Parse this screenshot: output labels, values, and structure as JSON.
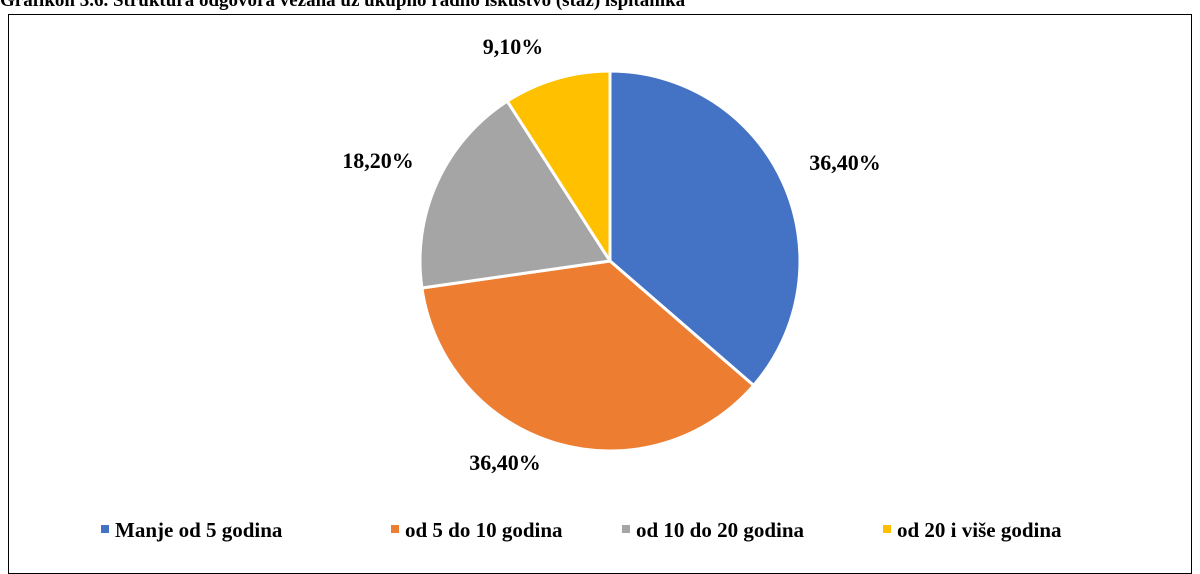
{
  "caption": "Grafikon 3.6. Struktura odgovora vezana uz ukupno radno iskustvo (staž) ispitanika",
  "chart_data": {
    "type": "pie",
    "title": "",
    "start_angle_deg": 0,
    "direction": "clockwise",
    "legend_position": "bottom",
    "slices": [
      {
        "category": "Manje od 5 godina",
        "value": 36.4,
        "label": "36,40%",
        "color": "#4472C4"
      },
      {
        "category": "od 5 do 10 godina",
        "value": 36.4,
        "label": "36,40%",
        "color": "#ED7D31"
      },
      {
        "category": "od 10 do 20 godina",
        "value": 18.2,
        "label": "18,20%",
        "color": "#A5A5A5"
      },
      {
        "category": "od 20 i više godina",
        "value": 9.1,
        "label": "9,10%",
        "color": "#FFC000"
      }
    ]
  }
}
